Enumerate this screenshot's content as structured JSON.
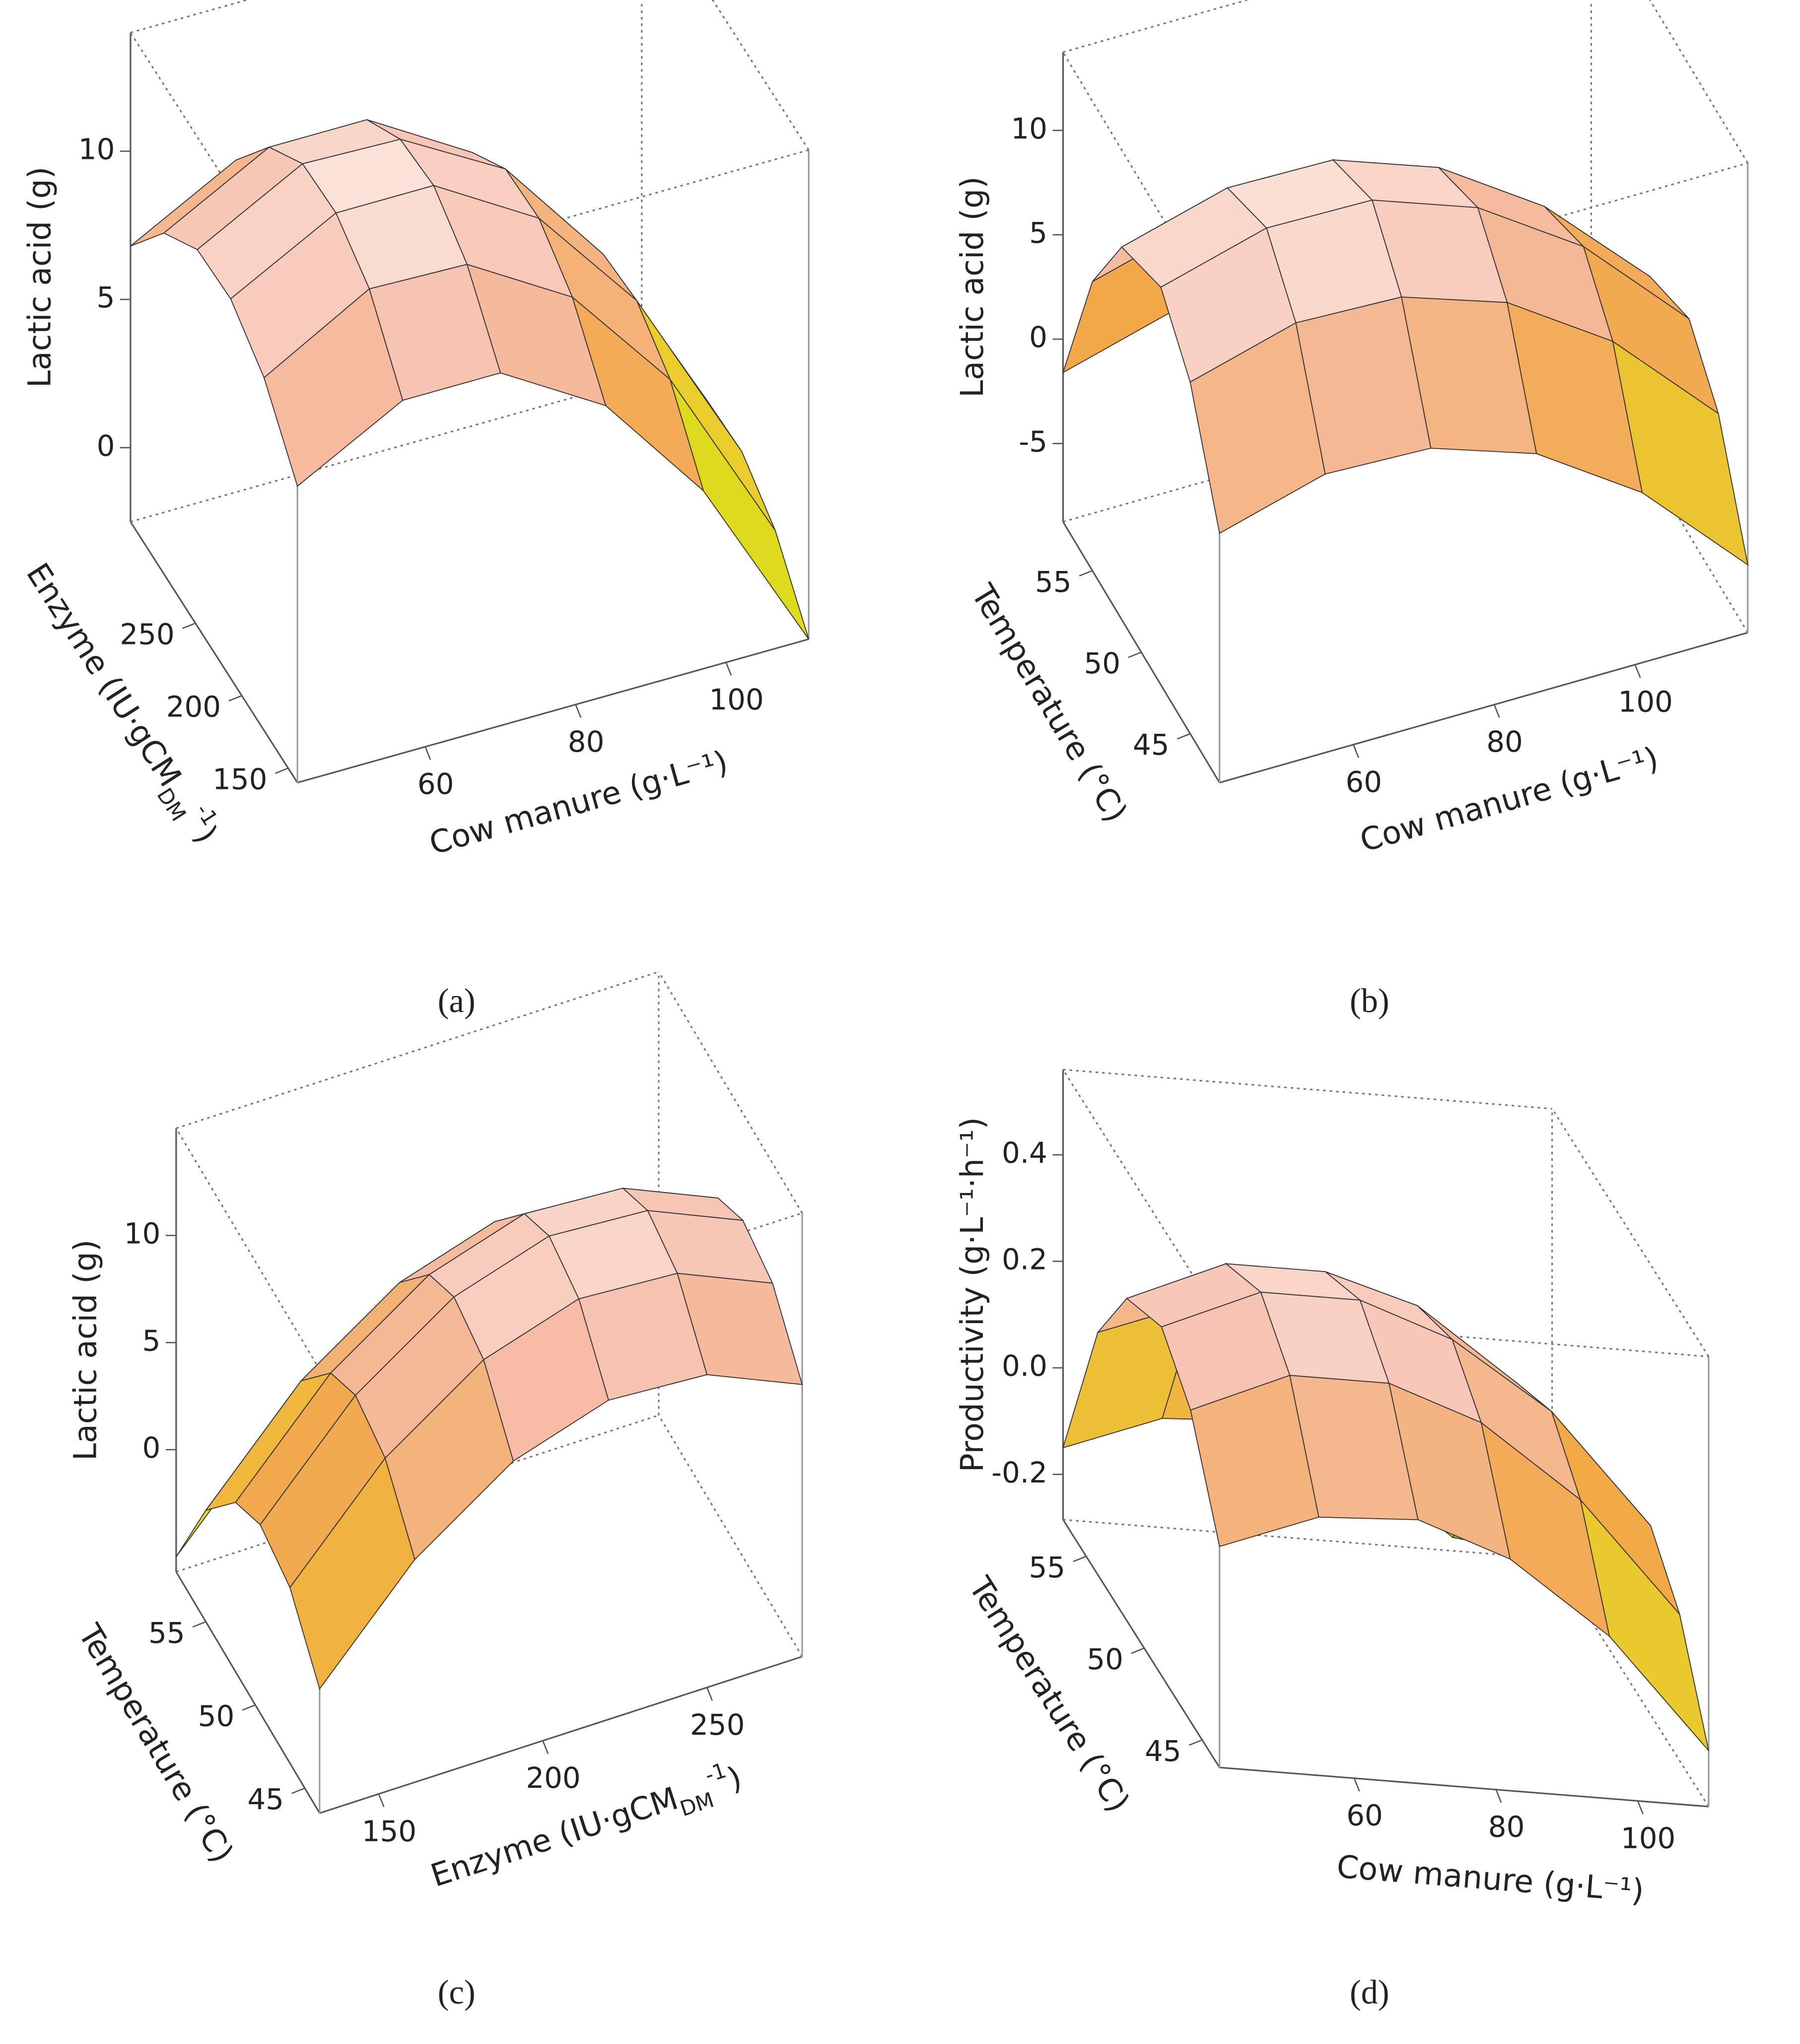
{
  "chart_data": [
    {
      "type": "surface3d",
      "panel_label": "(a)",
      "xlabel": "Cow manure (g·L⁻¹)",
      "ylabel": {
        "text": "Enzyme (IU·gCM",
        "sub": "DM",
        "sup": "-1",
        "end": ")"
      },
      "zlabel": "Lactic acid (g)",
      "x": [
        43,
        57,
        70,
        84,
        97,
        111
      ],
      "y": [
        140,
        176,
        212,
        248,
        284,
        320
      ],
      "z": [
        [
          7.5,
          9.4,
          9.4,
          7.3,
          3.5,
          -2.5
        ],
        [
          9.4,
          11.4,
          11.3,
          9.2,
          5.5,
          -0.6
        ],
        [
          10.3,
          12.2,
          12.2,
          10.1,
          6.4,
          0.3
        ],
        [
          10.2,
          12.1,
          12.0,
          10.0,
          6.2,
          0.2
        ],
        [
          9.0,
          10.9,
          10.9,
          8.8,
          5.0,
          -1.0
        ],
        [
          6.8,
          8.7,
          8.6,
          6.6,
          2.8,
          -2.4
        ]
      ],
      "xlim": [
        43,
        111
      ],
      "ylim": [
        140,
        320
      ],
      "zlim": [
        -2.5,
        14
      ],
      "xticks": [
        60,
        80,
        100
      ],
      "yticks": [
        150,
        200,
        250
      ],
      "zticks": [
        0,
        5,
        10
      ],
      "colormap": [
        "#14a014",
        "#e6dc1e",
        "#f2a848",
        "#f6bca8",
        "#ffffff"
      ]
    },
    {
      "type": "surface3d",
      "panel_label": "(b)",
      "xlabel": "Cow manure (g·L⁻¹)",
      "ylabel": "Temperature (°C)",
      "zlabel": "Lactic acid (g)",
      "x": [
        41,
        56,
        71,
        86,
        101,
        116
      ],
      "y": [
        42,
        45,
        48,
        52,
        55,
        58
      ],
      "z": [
        [
          3.2,
          4.6,
          4.4,
          2.7,
          -0.6,
          -5.5
        ],
        [
          8.1,
          9.5,
          9.3,
          7.6,
          4.3,
          -0.6
        ],
        [
          10.3,
          11.7,
          11.6,
          9.8,
          6.5,
          1.6
        ],
        [
          9.1,
          10.5,
          10.4,
          8.6,
          5.3,
          0.5
        ],
        [
          5.1,
          6.5,
          6.4,
          4.6,
          1.3,
          -3.6
        ],
        [
          -1.6,
          -0.2,
          -0.4,
          -2.1,
          -5.4,
          -8.5
        ]
      ],
      "xlim": [
        41,
        116
      ],
      "ylim": [
        42,
        58
      ],
      "zlim": [
        -8.75,
        13.75
      ],
      "xticks": [
        60,
        80,
        100
      ],
      "yticks": [
        45,
        50,
        55
      ],
      "zticks": [
        -5,
        0,
        5,
        10
      ],
      "colormap": [
        "#14a014",
        "#e6dc1e",
        "#f2a848",
        "#f6bca8",
        "#ffffff"
      ]
    },
    {
      "type": "surface3d",
      "panel_label": "(c)",
      "xlabel": {
        "text": "Enzyme (IU·gCM",
        "sub": "DM",
        "sup": "-1",
        "end": ")"
      },
      "ylabel": "Temperature (°C)",
      "zlabel": "Lactic acid (g)",
      "x": [
        132,
        161,
        191,
        220,
        250,
        279
      ],
      "y": [
        43.5,
        46.5,
        49.5,
        52,
        55,
        58
      ],
      "z": [
        [
          0.1,
          4.7,
          7.8,
          9.2,
          8.9,
          7.0
        ],
        [
          2.5,
          7.1,
          10.2,
          11.6,
          11.3,
          9.4
        ],
        [
          3.1,
          7.7,
          10.8,
          12.2,
          11.9,
          10.0
        ],
        [
          2.2,
          6.8,
          9.9,
          11.3,
          11.0,
          9.1
        ],
        [
          -0.5,
          4.1,
          7.2,
          8.6,
          8.3,
          6.4
        ],
        [
          -5.0,
          -0.4,
          2.7,
          4.1,
          3.8,
          1.9
        ]
      ],
      "xlim": [
        132,
        279
      ],
      "ylim": [
        43.5,
        58
      ],
      "zlim": [
        -5.7,
        15
      ],
      "xticks": [
        150,
        200,
        250
      ],
      "yticks": [
        45,
        50,
        55
      ],
      "zticks": [
        0,
        5,
        10
      ],
      "colormap": [
        "#14a014",
        "#e6dc1e",
        "#f2a848",
        "#f6bca8",
        "#ffffff"
      ]
    },
    {
      "type": "surface3d",
      "panel_label": "(d)",
      "xlabel": "Cow manure (g·L⁻¹)",
      "ylabel": "Temperature (°C)",
      "zlabel": "Productivity (g·L⁻¹·h⁻¹)",
      "x": [
        41,
        55,
        69,
        82,
        96,
        110
      ],
      "y": [
        43.5,
        46,
        48.5,
        51.5,
        54,
        57
      ],
      "z": [
        [
          0.13,
          0.2,
          0.21,
          0.15,
          0.02,
          -0.18
        ],
        [
          0.3,
          0.38,
          0.38,
          0.32,
          0.19,
          -0.01
        ],
        [
          0.37,
          0.45,
          0.45,
          0.39,
          0.27,
          0.07
        ],
        [
          0.32,
          0.4,
          0.4,
          0.35,
          0.22,
          0.02
        ],
        [
          0.17,
          0.24,
          0.25,
          0.19,
          0.06,
          -0.14
        ],
        [
          -0.15,
          -0.08,
          -0.07,
          -0.13,
          -0.26,
          -0.28
        ]
      ],
      "xlim": [
        41,
        110
      ],
      "ylim": [
        43.5,
        57
      ],
      "zlim": [
        -0.285,
        0.56
      ],
      "xticks": [
        60,
        80,
        100
      ],
      "yticks": [
        45,
        50,
        55
      ],
      "zticks": [
        {
          "value": -0.2,
          "label": "-0.2"
        },
        {
          "value": 0,
          "label": "0.0"
        },
        0.2,
        0.4
      ],
      "colormap": [
        "#14a014",
        "#e6dc1e",
        "#f2a848",
        "#f6bca8",
        "#ffffff"
      ]
    }
  ]
}
